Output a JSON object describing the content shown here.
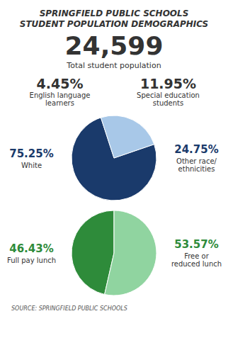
{
  "chart_data": [
    {
      "type": "pie",
      "title": "SPRINGFIELD PUBLIC SCHOOLS",
      "subtitle": "STUDENT POPULATION DEMOGRAPHICS",
      "annotations": [
        "24,599",
        "Total student population",
        "4.45%",
        "English language\nlearners",
        "11.95%",
        "Special education\nstudents"
      ],
      "categories": [
        "White",
        "Other race/\nethnicities"
      ],
      "values": [
        75.25,
        24.75
      ],
      "value_labels": [
        "75.25%",
        "24.75%"
      ],
      "colors": [
        "#1a3a6b",
        "#a8c8e8"
      ],
      "data_labels": true
    },
    {
      "type": "pie",
      "annotations": [
        "SOURCE: SPRINGFIELD PUBLIC SCHOOLS"
      ],
      "categories": [
        "Full pay lunch",
        "Free or\nreduced lunch"
      ],
      "values": [
        46.43,
        53.57
      ],
      "value_labels": [
        "46.43%",
        "53.57%"
      ],
      "colors": [
        "#2e8b3a",
        "#90d4a0"
      ],
      "data_labels": true
    }
  ]
}
